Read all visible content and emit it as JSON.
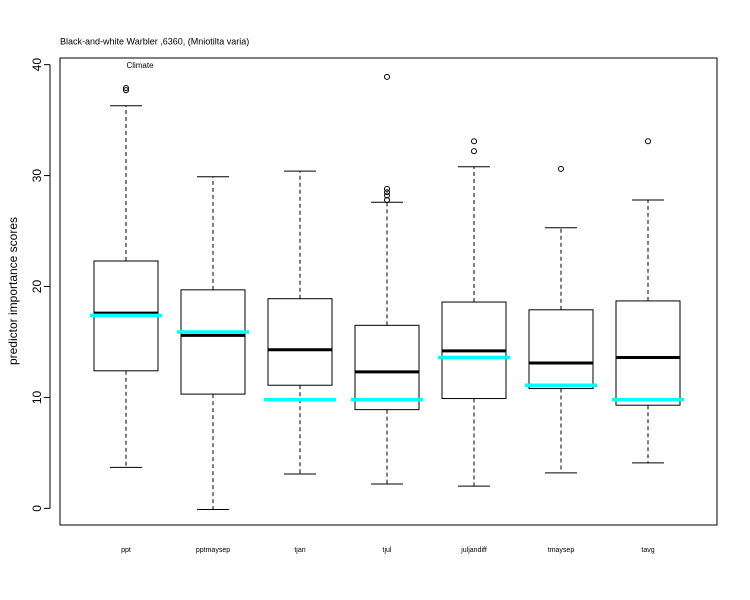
{
  "chart_data": {
    "type": "box",
    "title": "Black-and-white Warbler ,6360, (Mniotilta varia)",
    "annotation": "Climate",
    "annotation_color": "#ff0000",
    "ylabel": "predictor importance scores",
    "ylim": [
      -1.5,
      40.6
    ],
    "yticks": [
      0,
      10,
      20,
      30,
      40
    ],
    "box_color": "#000000",
    "reference_color": "#00ffff",
    "categories": [
      "ppt",
      "pptmaysep",
      "tjan",
      "tjul",
      "juljandiff",
      "tmaysep",
      "tavg"
    ],
    "boxes": [
      {
        "whisker_low": 3.7,
        "q1": 12.4,
        "median": 17.6,
        "q3": 22.3,
        "whisker_high": 36.3,
        "outliers": [
          37.7,
          37.9
        ],
        "reference": 17.4
      },
      {
        "whisker_low": -0.1,
        "q1": 10.3,
        "median": 15.6,
        "q3": 19.7,
        "whisker_high": 29.9,
        "outliers": [],
        "reference": 15.9
      },
      {
        "whisker_low": 3.1,
        "q1": 11.1,
        "median": 14.3,
        "q3": 18.9,
        "whisker_high": 30.4,
        "outliers": [],
        "reference": 9.8
      },
      {
        "whisker_low": 2.2,
        "q1": 8.9,
        "median": 12.3,
        "q3": 16.5,
        "whisker_high": 27.6,
        "outliers": [
          27.8,
          28.2,
          28.5,
          28.8,
          38.9
        ],
        "reference": 9.8
      },
      {
        "whisker_low": 2.0,
        "q1": 9.9,
        "median": 14.2,
        "q3": 18.6,
        "whisker_high": 30.8,
        "outliers": [
          32.2,
          33.1
        ],
        "reference": 13.6
      },
      {
        "whisker_low": 3.2,
        "q1": 10.8,
        "median": 13.1,
        "q3": 17.9,
        "whisker_high": 25.3,
        "outliers": [
          30.6
        ],
        "reference": 11.1
      },
      {
        "whisker_low": 4.1,
        "q1": 9.3,
        "median": 13.6,
        "q3": 18.7,
        "whisker_high": 27.8,
        "outliers": [
          33.1
        ],
        "reference": 9.8
      }
    ]
  }
}
